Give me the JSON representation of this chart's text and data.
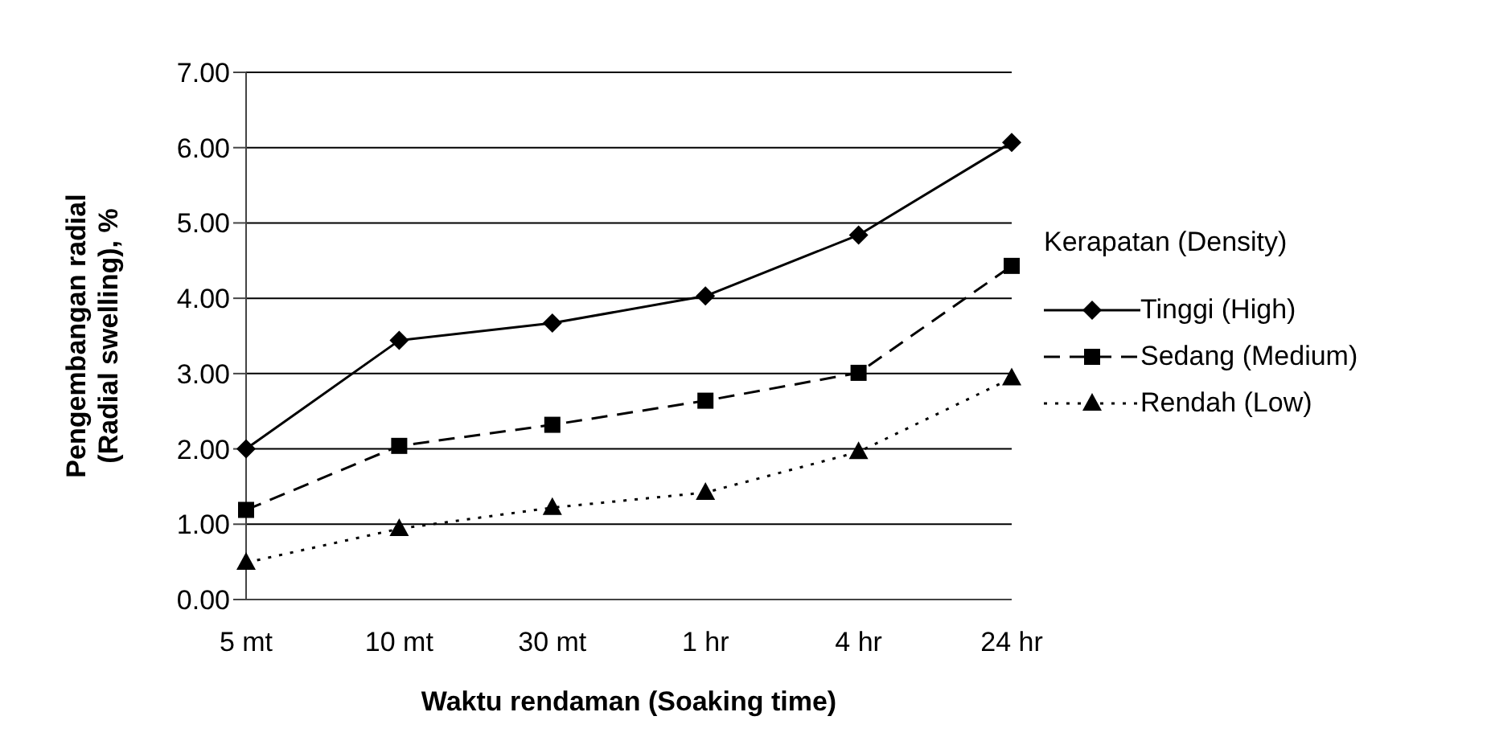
{
  "chart_data": {
    "type": "line",
    "xlabel": "Waktu rendaman (Soaking time)",
    "ylabel": "Pengembangan radial (Radial swelling), %",
    "legend_title": "Kerapatan (Density)",
    "categories": [
      "5 mt",
      "10 mt",
      "30 mt",
      "1 hr",
      "4 hr",
      "24 hr"
    ],
    "series": [
      {
        "name": "Tinggi (High)",
        "color": "#000000",
        "marker": "diamond",
        "line_style": "solid",
        "values": [
          2.0,
          3.44,
          3.67,
          4.03,
          4.84,
          6.07
        ]
      },
      {
        "name": "Sedang (Medium)",
        "color": "#000000",
        "marker": "square",
        "line_style": "dashed",
        "values": [
          1.19,
          2.04,
          2.32,
          2.64,
          3.01,
          4.43
        ]
      },
      {
        "name": "Rendah (Low)",
        "color": "#000000",
        "marker": "triangle",
        "line_style": "dotted",
        "values": [
          0.49,
          0.94,
          1.22,
          1.42,
          1.96,
          2.94
        ]
      }
    ],
    "ylim": [
      0,
      7
    ],
    "yticks": [
      {
        "value": 0,
        "label": "0.00"
      },
      {
        "value": 1,
        "label": "1.00"
      },
      {
        "value": 2,
        "label": "2.00"
      },
      {
        "value": 3,
        "label": "3.00"
      },
      {
        "value": 4,
        "label": "4.00"
      },
      {
        "value": 5,
        "label": "5.00"
      },
      {
        "value": 6,
        "label": "6.00"
      },
      {
        "value": 7,
        "label": "7.00"
      }
    ],
    "grid": "y",
    "legend": "right"
  }
}
